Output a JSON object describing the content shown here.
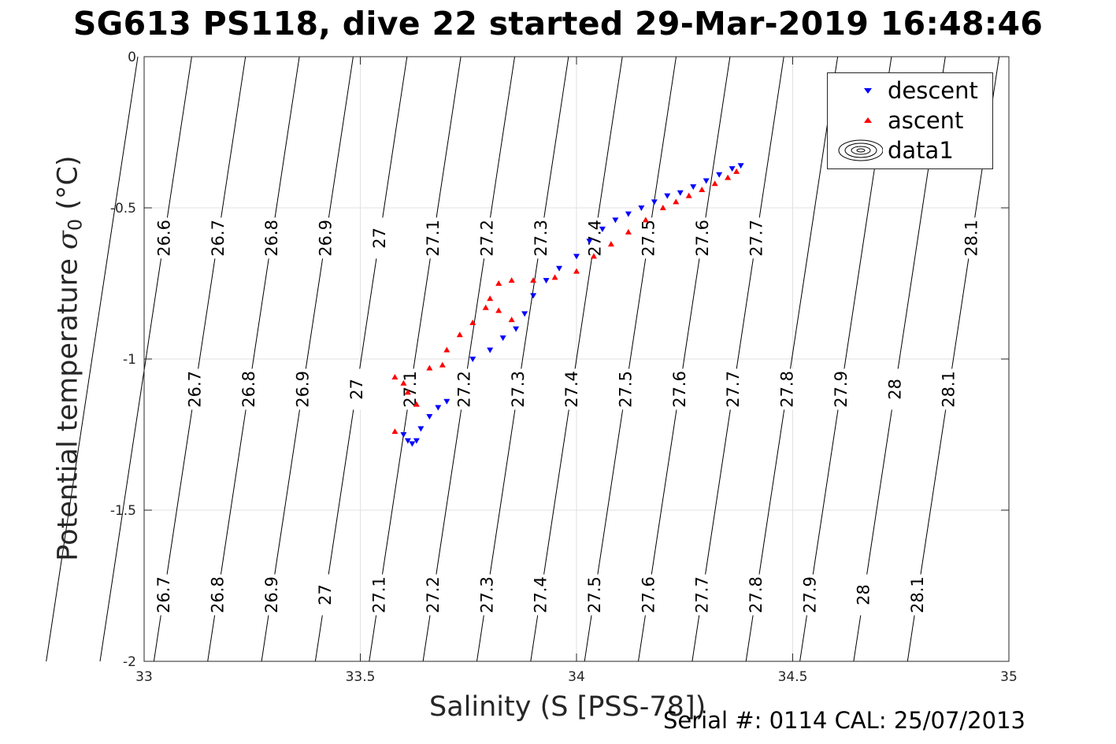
{
  "title": "SG613 PS118, dive 22 started 29-Mar-2019 16:48:46",
  "footer": "Serial #: 0114  CAL: 25/07/2013",
  "chart_data": {
    "type": "scatter",
    "title": "SG613 PS118, dive 22 started 29-Mar-2019 16:48:46",
    "xlabel": "Salinity (S [PSS-78])",
    "ylabel_main": "Potential temperature ",
    "ylabel_sigma": "σ",
    "ylabel_sub": "0",
    "ylabel_unit": " (°C)",
    "xlim": [
      33,
      35
    ],
    "ylim": [
      -2,
      0
    ],
    "xticks": [
      33,
      33.5,
      34,
      34.5,
      35
    ],
    "yticks": [
      0,
      -0.5,
      -1,
      -1.5,
      -2
    ],
    "xtick_labels": [
      "33",
      "33.5",
      "34",
      "34.5",
      "35"
    ],
    "ytick_labels": [
      "0",
      "-0.5",
      "-1",
      "-1.5",
      "-2"
    ],
    "grid": true,
    "legend_position": "top-right",
    "series": [
      {
        "name": "descent",
        "marker": "down-triangle",
        "color": "#0000ff",
        "points": [
          [
            33.6,
            -1.25
          ],
          [
            33.61,
            -1.27
          ],
          [
            33.62,
            -1.28
          ],
          [
            33.63,
            -1.27
          ],
          [
            33.64,
            -1.23
          ],
          [
            33.66,
            -1.19
          ],
          [
            33.68,
            -1.16
          ],
          [
            33.7,
            -1.14
          ],
          [
            33.76,
            -1.0
          ],
          [
            33.8,
            -0.97
          ],
          [
            33.83,
            -0.93
          ],
          [
            33.86,
            -0.9
          ],
          [
            33.88,
            -0.85
          ],
          [
            33.9,
            -0.79
          ],
          [
            33.93,
            -0.74
          ],
          [
            33.96,
            -0.7
          ],
          [
            34.0,
            -0.66
          ],
          [
            34.03,
            -0.61
          ],
          [
            34.06,
            -0.57
          ],
          [
            34.09,
            -0.54
          ],
          [
            34.12,
            -0.52
          ],
          [
            34.15,
            -0.5
          ],
          [
            34.18,
            -0.48
          ],
          [
            34.21,
            -0.46
          ],
          [
            34.24,
            -0.45
          ],
          [
            34.27,
            -0.43
          ],
          [
            34.3,
            -0.41
          ],
          [
            34.33,
            -0.39
          ],
          [
            34.36,
            -0.37
          ],
          [
            34.38,
            -0.36
          ]
        ]
      },
      {
        "name": "ascent",
        "marker": "up-triangle",
        "color": "#ff0000",
        "points": [
          [
            33.58,
            -1.24
          ],
          [
            33.58,
            -1.06
          ],
          [
            33.6,
            -1.08
          ],
          [
            33.61,
            -1.11
          ],
          [
            33.63,
            -1.15
          ],
          [
            33.66,
            -1.03
          ],
          [
            33.69,
            -1.02
          ],
          [
            33.7,
            -0.97
          ],
          [
            33.73,
            -0.92
          ],
          [
            33.76,
            -0.88
          ],
          [
            33.79,
            -0.83
          ],
          [
            33.8,
            -0.8
          ],
          [
            33.82,
            -0.84
          ],
          [
            33.85,
            -0.87
          ],
          [
            33.82,
            -0.75
          ],
          [
            33.85,
            -0.74
          ],
          [
            33.9,
            -0.74
          ],
          [
            33.95,
            -0.73
          ],
          [
            34.0,
            -0.71
          ],
          [
            34.04,
            -0.66
          ],
          [
            34.08,
            -0.62
          ],
          [
            34.12,
            -0.58
          ],
          [
            34.16,
            -0.54
          ],
          [
            34.2,
            -0.5
          ],
          [
            34.23,
            -0.48
          ],
          [
            34.26,
            -0.46
          ],
          [
            34.29,
            -0.44
          ],
          [
            34.32,
            -0.42
          ],
          [
            34.35,
            -0.4
          ],
          [
            34.37,
            -0.38
          ]
        ]
      }
    ],
    "data1_label": "data1",
    "contour_levels": [
      "26.6",
      "26.7",
      "26.8",
      "26.9",
      "27",
      "27.1",
      "27.2",
      "27.3",
      "27.4",
      "27.5",
      "27.6",
      "27.7",
      "27.8",
      "27.9",
      "28",
      "28.1"
    ]
  }
}
